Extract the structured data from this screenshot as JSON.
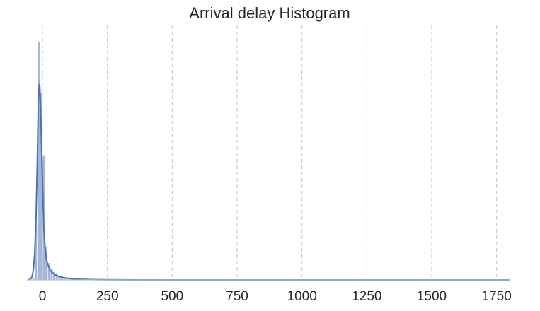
{
  "chart_data": {
    "type": "bar",
    "title": "Arrival delay Histogram",
    "xlabel": "",
    "ylabel": "",
    "xlim": [
      -60,
      1800
    ],
    "xticks": [
      0,
      250,
      500,
      750,
      1000,
      1250,
      1500,
      1750
    ],
    "xtick_labels": [
      "0",
      "250",
      "500",
      "750",
      "1000",
      "1250",
      "1500",
      "1750"
    ],
    "grid": "vertical-dashed",
    "colors": {
      "bar": "#a4b5d5",
      "kde": "#4c72b0",
      "grid": "#cccccc",
      "axis": "#b8c4d6"
    },
    "bins": [
      {
        "x0": -40,
        "x1": -30,
        "count": 0.6
      },
      {
        "x0": -30,
        "x1": -20,
        "count": 21
      },
      {
        "x0": -20,
        "x1": -10,
        "count": 90
      },
      {
        "x0": -10,
        "x1": 0,
        "count": 71
      },
      {
        "x0": 0,
        "x1": 10,
        "count": 47
      },
      {
        "x0": 10,
        "x1": 20,
        "count": 12.5
      },
      {
        "x0": 20,
        "x1": 30,
        "count": 6.5
      },
      {
        "x0": 30,
        "x1": 40,
        "count": 4.2
      },
      {
        "x0": 40,
        "x1": 50,
        "count": 3.0
      },
      {
        "x0": 50,
        "x1": 60,
        "count": 2.2
      },
      {
        "x0": 60,
        "x1": 70,
        "count": 1.6
      },
      {
        "x0": 70,
        "x1": 80,
        "count": 1.2
      },
      {
        "x0": 80,
        "x1": 90,
        "count": 0.9
      },
      {
        "x0": 90,
        "x1": 100,
        "count": 0.7
      },
      {
        "x0": 100,
        "x1": 110,
        "count": 0.6
      },
      {
        "x0": 110,
        "x1": 120,
        "count": 0.45
      },
      {
        "x0": 120,
        "x1": 130,
        "count": 0.35
      },
      {
        "x0": 130,
        "x1": 140,
        "count": 0.28
      },
      {
        "x0": 140,
        "x1": 150,
        "count": 0.2
      },
      {
        "x0": 150,
        "x1": 160,
        "count": 0.15
      },
      {
        "x0": 160,
        "x1": 170,
        "count": 0.12
      },
      {
        "x0": 170,
        "x1": 180,
        "count": 0.1
      },
      {
        "x0": 180,
        "x1": 190,
        "count": 0.08
      },
      {
        "x0": 190,
        "x1": 200,
        "count": 0.06
      }
    ],
    "kde": {
      "x": [
        -55,
        -45,
        -40,
        -35,
        -30,
        -25,
        -20,
        -17,
        -15,
        -12,
        -10,
        -7,
        -5,
        -2,
        0,
        3,
        5,
        10,
        15,
        20,
        30,
        40,
        50,
        60,
        80,
        100,
        120,
        150,
        200,
        300,
        500,
        1000,
        1500,
        1800
      ],
      "y": [
        0,
        0.4,
        1.2,
        4,
        10,
        22,
        45,
        62,
        70,
        74,
        73,
        64,
        56,
        44,
        37,
        27,
        20,
        12,
        8,
        5.8,
        3.6,
        2.6,
        1.9,
        1.4,
        0.9,
        0.6,
        0.4,
        0.25,
        0.1,
        0.03,
        0.01,
        0,
        0,
        0
      ]
    }
  }
}
